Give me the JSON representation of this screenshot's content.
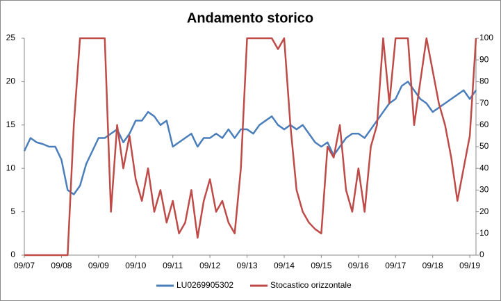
{
  "chart_data": {
    "type": "line",
    "title": "Andamento storico",
    "categories": [
      "09/07",
      null,
      null,
      null,
      null,
      null,
      "09/08",
      null,
      null,
      null,
      null,
      null,
      "09/09",
      null,
      null,
      null,
      null,
      null,
      "09/10",
      null,
      null,
      null,
      null,
      null,
      "09/11",
      null,
      null,
      null,
      null,
      null,
      "09/12",
      null,
      null,
      null,
      null,
      null,
      "09/13",
      null,
      null,
      null,
      null,
      null,
      "09/14",
      null,
      null,
      null,
      null,
      null,
      "09/15",
      null,
      null,
      null,
      null,
      null,
      "09/16",
      null,
      null,
      null,
      null,
      null,
      "09/17",
      null,
      null,
      null,
      null,
      null,
      "09/18",
      null,
      null,
      null,
      null,
      null,
      "09/19",
      null
    ],
    "series": [
      {
        "name": "LU0269905302",
        "color": "#4a7ebb",
        "values": [
          12,
          13.5,
          13,
          12.8,
          12.5,
          12.5,
          11,
          7.5,
          7,
          8,
          10.5,
          12,
          13.5,
          13.5,
          14,
          14.5,
          13,
          14,
          15.5,
          15.5,
          16.5,
          16,
          15,
          15.5,
          12.5,
          13,
          13.5,
          14,
          12.5,
          13.5,
          13.5,
          14,
          13.5,
          14.5,
          13.5,
          14.5,
          14.5,
          14,
          15,
          15.5,
          16,
          15,
          14.5,
          15,
          14.5,
          15,
          14,
          13,
          12.5,
          13,
          11.5,
          12.5,
          13.5,
          14,
          14,
          13.5,
          14.5,
          15.5,
          16.5,
          17.5,
          18,
          19.5,
          20,
          19,
          18,
          17.5,
          16.5,
          17,
          17.5,
          18,
          18.5,
          19,
          18,
          19
        ]
      },
      {
        "name": "Stocastico orizzontale",
        "color": "#be4b48",
        "axis": "y2",
        "values": [
          0,
          0,
          0,
          0,
          0,
          0,
          0,
          0,
          60,
          100,
          100,
          100,
          100,
          100,
          20,
          60,
          40,
          55,
          35,
          25,
          40,
          20,
          30,
          15,
          25,
          10,
          15,
          30,
          8,
          25,
          35,
          20,
          25,
          15,
          10,
          40,
          100,
          100,
          100,
          100,
          100,
          95,
          100,
          60,
          30,
          20,
          15,
          12,
          10,
          50,
          45,
          60,
          30,
          20,
          40,
          20,
          50,
          60,
          100,
          70,
          100,
          100,
          100,
          60,
          80,
          100,
          85,
          70,
          60,
          45,
          25,
          40,
          55,
          100
        ]
      }
    ],
    "ylim": [
      0,
      25
    ],
    "yticks": [
      0,
      5,
      10,
      15,
      20,
      25
    ],
    "y2lim": [
      0,
      100
    ],
    "y2ticks": [
      0,
      10,
      20,
      30,
      40,
      50,
      60,
      70,
      80,
      90,
      100
    ],
    "legend": "bottom"
  }
}
